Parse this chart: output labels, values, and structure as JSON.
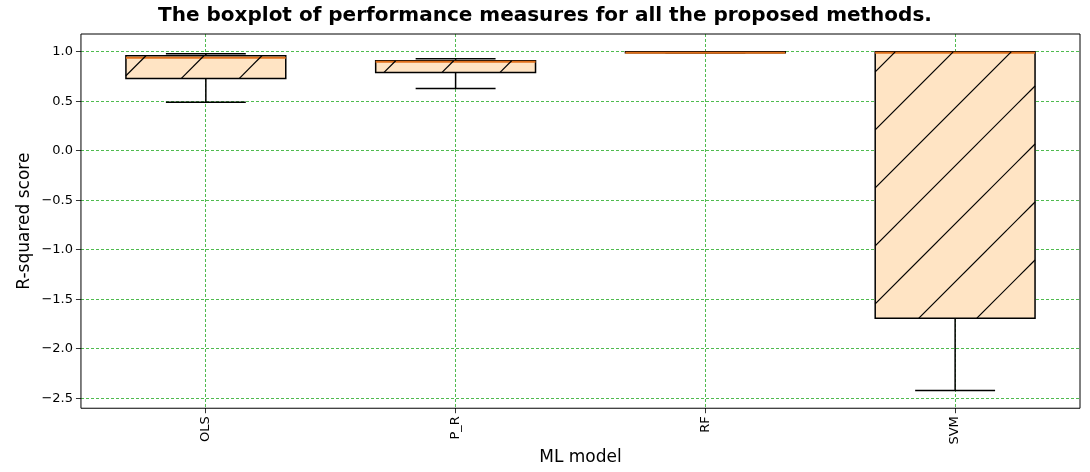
{
  "chart_data": {
    "type": "box",
    "title": "The boxplot of performance measures for all the proposed methods.",
    "xlabel": "ML model",
    "ylabel": "R-squared score",
    "categories": [
      "OLS",
      "P_R",
      "RF",
      "SVM"
    ],
    "series": [
      {
        "color": "#ffe4c4",
        "boxes": [
          {
            "low": 0.49,
            "q1": 0.73,
            "median": 0.94,
            "q3": 0.96,
            "high": 0.98
          },
          {
            "low": 0.63,
            "q1": 0.79,
            "median": 0.9,
            "q3": 0.91,
            "high": 0.93
          },
          {
            "low": 0.99,
            "q1": 0.99,
            "median": 0.99,
            "q3": 1.0,
            "high": 1.0
          },
          {
            "low": -2.42,
            "q1": -1.69,
            "median": 0.99,
            "q3": 1.0,
            "high": 1.0
          }
        ]
      }
    ],
    "ylim": [
      -2.6,
      1.18
    ],
    "yticks": [
      {
        "value": -2.5,
        "label": "−2.5"
      },
      {
        "value": -2.0,
        "label": "−2.0"
      },
      {
        "value": -1.5,
        "label": "−1.5"
      },
      {
        "value": -1.0,
        "label": "−1.0"
      },
      {
        "value": -0.5,
        "label": "−0.5"
      },
      {
        "value": 0,
        "label": "0.0"
      },
      {
        "value": 0.5,
        "label": "0.5"
      },
      {
        "value": 1.0,
        "label": "1.0"
      }
    ],
    "grid": true
  }
}
